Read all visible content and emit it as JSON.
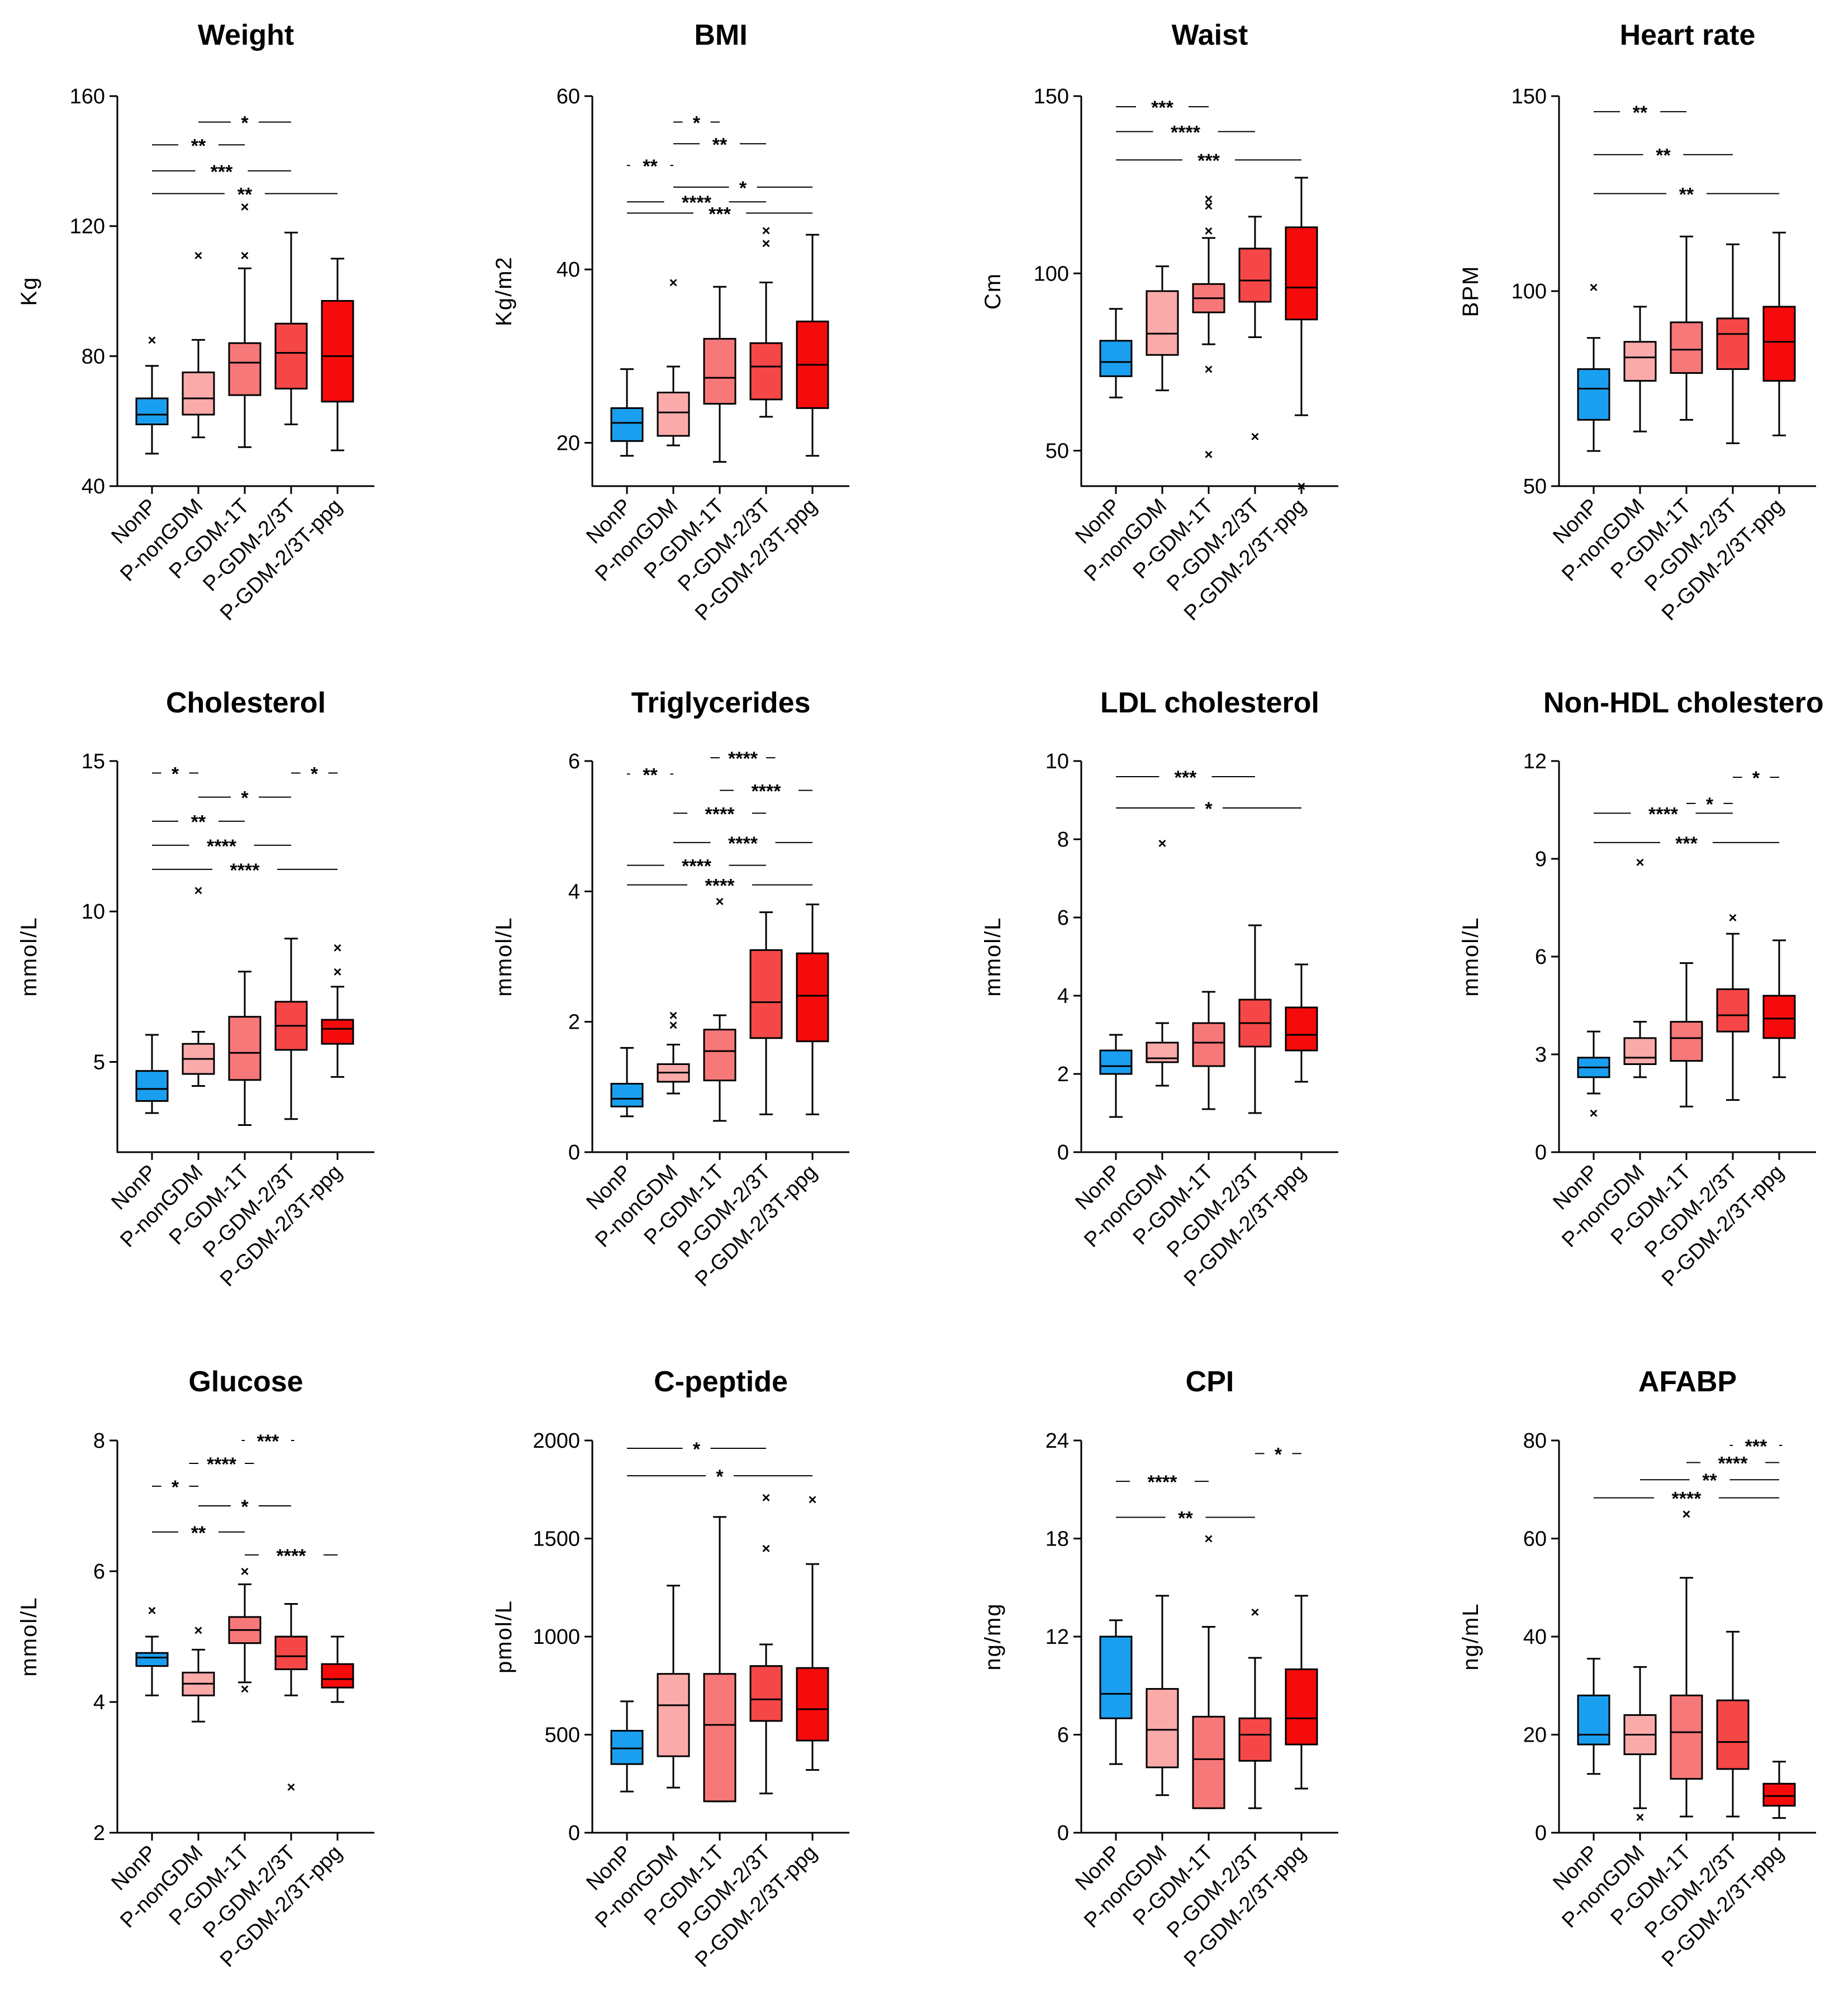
{
  "colors": [
    "#1a9ff0",
    "#fbaaaa",
    "#f77878",
    "#f54747",
    "#f50b0b"
  ],
  "categories": [
    "NonP",
    "P-nonGDM",
    "P-GDM-1T",
    "P-GDM-2/3T",
    "P-GDM-2/3T-ppg"
  ],
  "chart_data": [
    {
      "type": "box",
      "title": "Weight",
      "ylabel": "Kg",
      "ylim": [
        40,
        160
      ],
      "yticks": [
        "40",
        "80",
        "120",
        "160"
      ],
      "boxes": [
        {
          "min": 50,
          "q1": 59,
          "med": 62,
          "q3": 67,
          "max": 77,
          "outliers": [
            85
          ]
        },
        {
          "min": 55,
          "q1": 62,
          "med": 67,
          "q3": 75,
          "max": 85,
          "outliers": [
            111
          ]
        },
        {
          "min": 52,
          "q1": 68,
          "med": 78,
          "q3": 84,
          "max": 107,
          "outliers": [
            111,
            126
          ]
        },
        {
          "min": 59,
          "q1": 70,
          "med": 81,
          "q3": 90,
          "max": 118,
          "outliers": []
        },
        {
          "min": 51,
          "q1": 66,
          "med": 80,
          "q3": 97,
          "max": 110,
          "outliers": []
        }
      ],
      "sigs": [
        {
          "from": 2,
          "to": 4,
          "label": "*",
          "y": 152
        },
        {
          "from": 1,
          "to": 3,
          "label": "**",
          "y": 145
        },
        {
          "from": 1,
          "to": 4,
          "label": "***",
          "y": 137
        },
        {
          "from": 1,
          "to": 5,
          "label": "**",
          "y": 130
        }
      ]
    },
    {
      "type": "box",
      "title": "BMI",
      "ylabel": "Kg/m2",
      "ylim": [
        15,
        60
      ],
      "yticks": [
        "20",
        "40",
        "60"
      ],
      "boxes": [
        {
          "min": 18.5,
          "q1": 20.2,
          "med": 22.3,
          "q3": 24,
          "max": 28.5,
          "outliers": []
        },
        {
          "min": 19.7,
          "q1": 20.8,
          "med": 23.5,
          "q3": 25.8,
          "max": 28.8,
          "outliers": [
            38.5
          ]
        },
        {
          "min": 17.8,
          "q1": 24.5,
          "med": 27.5,
          "q3": 32,
          "max": 38,
          "outliers": []
        },
        {
          "min": 23,
          "q1": 25,
          "med": 28.8,
          "q3": 31.5,
          "max": 38.5,
          "outliers": [
            43,
            44.5
          ]
        },
        {
          "min": 18.5,
          "q1": 24,
          "med": 29,
          "q3": 34,
          "max": 44,
          "outliers": []
        }
      ],
      "sigs": [
        {
          "from": 2,
          "to": 3,
          "label": "*",
          "y": 57
        },
        {
          "from": 2,
          "to": 4,
          "label": "**",
          "y": 54.5
        },
        {
          "from": 1,
          "to": 2,
          "label": "**",
          "y": 52
        },
        {
          "from": 2,
          "to": 5,
          "label": "*",
          "y": 49.5
        },
        {
          "from": 1,
          "to": 4,
          "label": "****",
          "y": 47.8
        },
        {
          "from": 1,
          "to": 5,
          "label": "***",
          "y": 46.5
        }
      ]
    },
    {
      "type": "box",
      "title": "Waist",
      "ylabel": "Cm",
      "ylim": [
        40,
        150
      ],
      "yticks": [
        "50",
        "100",
        "150"
      ],
      "boxes": [
        {
          "min": 65,
          "q1": 71,
          "med": 75,
          "q3": 81,
          "max": 90,
          "outliers": []
        },
        {
          "min": 67,
          "q1": 77,
          "med": 83,
          "q3": 95,
          "max": 102,
          "outliers": []
        },
        {
          "min": 80,
          "q1": 89,
          "med": 93,
          "q3": 97,
          "max": 110,
          "outliers": [
            49,
            73,
            112,
            119,
            121
          ]
        },
        {
          "min": 82,
          "q1": 92,
          "med": 98,
          "q3": 107,
          "max": 116,
          "outliers": [
            54
          ]
        },
        {
          "min": 60,
          "q1": 87,
          "med": 96,
          "q3": 113,
          "max": 127,
          "outliers": [
            40
          ]
        }
      ],
      "sigs": [
        {
          "from": 1,
          "to": 3,
          "label": "***",
          "y": 147
        },
        {
          "from": 1,
          "to": 4,
          "label": "****",
          "y": 140
        },
        {
          "from": 1,
          "to": 5,
          "label": "***",
          "y": 132
        }
      ]
    },
    {
      "type": "box",
      "title": "Heart rate",
      "ylabel": "BPM",
      "ylim": [
        50,
        150
      ],
      "yticks": [
        "50",
        "100",
        "150"
      ],
      "boxes": [
        {
          "min": 59,
          "q1": 67,
          "med": 75,
          "q3": 80,
          "max": 88,
          "outliers": [
            101
          ]
        },
        {
          "min": 64,
          "q1": 77,
          "med": 83,
          "q3": 87,
          "max": 96,
          "outliers": []
        },
        {
          "min": 67,
          "q1": 79,
          "med": 85,
          "q3": 92,
          "max": 114,
          "outliers": []
        },
        {
          "min": 61,
          "q1": 80,
          "med": 89,
          "q3": 93,
          "max": 112,
          "outliers": []
        },
        {
          "min": 63,
          "q1": 77,
          "med": 87,
          "q3": 96,
          "max": 115,
          "outliers": []
        }
      ],
      "sigs": [
        {
          "from": 1,
          "to": 3,
          "label": "**",
          "y": 146
        },
        {
          "from": 1,
          "to": 4,
          "label": "**",
          "y": 135
        },
        {
          "from": 1,
          "to": 5,
          "label": "**",
          "y": 125
        }
      ]
    },
    {
      "type": "box",
      "title": "Cholesterol",
      "ylabel": "mmol/L",
      "ylim": [
        2,
        15
      ],
      "yticks": [
        "5",
        "10",
        "15"
      ],
      "boxes": [
        {
          "min": 3.3,
          "q1": 3.7,
          "med": 4.1,
          "q3": 4.7,
          "max": 5.9,
          "outliers": []
        },
        {
          "min": 4.2,
          "q1": 4.6,
          "med": 5.1,
          "q3": 5.6,
          "max": 6,
          "outliers": [
            10.7
          ]
        },
        {
          "min": 2.9,
          "q1": 4.4,
          "med": 5.3,
          "q3": 6.5,
          "max": 8,
          "outliers": []
        },
        {
          "min": 3.1,
          "q1": 5.4,
          "med": 6.2,
          "q3": 7,
          "max": 9.1,
          "outliers": []
        },
        {
          "min": 4.5,
          "q1": 5.6,
          "med": 6.1,
          "q3": 6.4,
          "max": 7.5,
          "outliers": [
            8,
            8.8
          ]
        }
      ],
      "sigs": [
        {
          "from": 1,
          "to": 2,
          "label": "*",
          "y": 14.6
        },
        {
          "from": 4,
          "to": 5,
          "label": "*",
          "y": 14.6
        },
        {
          "from": 2,
          "to": 4,
          "label": "*",
          "y": 13.8
        },
        {
          "from": 1,
          "to": 3,
          "label": "**",
          "y": 13
        },
        {
          "from": 1,
          "to": 4,
          "label": "****",
          "y": 12.2
        },
        {
          "from": 1,
          "to": 5,
          "label": "****",
          "y": 11.4
        }
      ]
    },
    {
      "type": "box",
      "title": "Triglycerides",
      "ylabel": "mmol/L",
      "ylim": [
        0,
        6
      ],
      "yticks": [
        "0",
        "2",
        "4",
        "6"
      ],
      "boxes": [
        {
          "min": 0.55,
          "q1": 0.7,
          "med": 0.82,
          "q3": 1.05,
          "max": 1.6,
          "outliers": []
        },
        {
          "min": 0.9,
          "q1": 1.08,
          "med": 1.22,
          "q3": 1.35,
          "max": 1.65,
          "outliers": [
            1.95,
            2.1
          ]
        },
        {
          "min": 0.48,
          "q1": 1.1,
          "med": 1.55,
          "q3": 1.88,
          "max": 2.1,
          "outliers": [
            3.85
          ]
        },
        {
          "min": 0.58,
          "q1": 1.75,
          "med": 2.3,
          "q3": 3.1,
          "max": 3.68,
          "outliers": []
        },
        {
          "min": 0.58,
          "q1": 1.7,
          "med": 2.4,
          "q3": 3.05,
          "max": 3.8,
          "outliers": []
        }
      ],
      "sigs": [
        {
          "from": 3,
          "to": 4,
          "label": "****",
          "y": 6.05
        },
        {
          "from": 1,
          "to": 2,
          "label": "**",
          "y": 5.8
        },
        {
          "from": 3,
          "to": 5,
          "label": "****",
          "y": 5.55
        },
        {
          "from": 2,
          "to": 4,
          "label": "****",
          "y": 5.2
        },
        {
          "from": 2,
          "to": 5,
          "label": "****",
          "y": 4.75
        },
        {
          "from": 1,
          "to": 4,
          "label": "****",
          "y": 4.4
        },
        {
          "from": 1,
          "to": 5,
          "label": "****",
          "y": 4.1
        }
      ]
    },
    {
      "type": "box",
      "title": "LDL cholesterol",
      "ylabel": "mmol/L",
      "ylim": [
        0,
        10
      ],
      "yticks": [
        "0",
        "2",
        "4",
        "6",
        "8",
        "10"
      ],
      "boxes": [
        {
          "min": 0.9,
          "q1": 2,
          "med": 2.2,
          "q3": 2.6,
          "max": 3,
          "outliers": []
        },
        {
          "min": 1.7,
          "q1": 2.3,
          "med": 2.4,
          "q3": 2.8,
          "max": 3.3,
          "outliers": [
            7.9
          ]
        },
        {
          "min": 1.1,
          "q1": 2.2,
          "med": 2.8,
          "q3": 3.3,
          "max": 4.1,
          "outliers": []
        },
        {
          "min": 1,
          "q1": 2.7,
          "med": 3.3,
          "q3": 3.9,
          "max": 5.8,
          "outliers": []
        },
        {
          "min": 1.8,
          "q1": 2.6,
          "med": 3,
          "q3": 3.7,
          "max": 4.8,
          "outliers": []
        }
      ],
      "sigs": [
        {
          "from": 1,
          "to": 4,
          "label": "***",
          "y": 9.6
        },
        {
          "from": 1,
          "to": 5,
          "label": "*",
          "y": 8.8
        }
      ]
    },
    {
      "type": "box",
      "title": "Non-HDL cholesterol",
      "ylabel": "mmol/L",
      "ylim": [
        0,
        12
      ],
      "yticks": [
        "0",
        "3",
        "6",
        "9",
        "12"
      ],
      "boxes": [
        {
          "min": 1.8,
          "q1": 2.3,
          "med": 2.6,
          "q3": 2.9,
          "max": 3.7,
          "outliers": [
            1.2
          ]
        },
        {
          "min": 2.3,
          "q1": 2.7,
          "med": 2.9,
          "q3": 3.5,
          "max": 4,
          "outliers": [
            8.9
          ]
        },
        {
          "min": 1.4,
          "q1": 2.8,
          "med": 3.5,
          "q3": 4,
          "max": 5.8,
          "outliers": []
        },
        {
          "min": 1.6,
          "q1": 3.7,
          "med": 4.2,
          "q3": 5,
          "max": 6.7,
          "outliers": [
            7.2
          ]
        },
        {
          "min": 2.3,
          "q1": 3.5,
          "med": 4.1,
          "q3": 4.8,
          "max": 6.5,
          "outliers": []
        }
      ],
      "sigs": [
        {
          "from": 4,
          "to": 5,
          "label": "*",
          "y": 11.5
        },
        {
          "from": 3,
          "to": 4,
          "label": "*",
          "y": 10.7
        },
        {
          "from": 1,
          "to": 4,
          "label": "****",
          "y": 10.4
        },
        {
          "from": 1,
          "to": 5,
          "label": "***",
          "y": 9.5
        }
      ]
    },
    {
      "type": "box",
      "title": "Glucose",
      "ylabel": "mmol/L",
      "ylim": [
        2,
        8
      ],
      "yticks": [
        "2",
        "4",
        "6",
        "8"
      ],
      "boxes": [
        {
          "min": 4.1,
          "q1": 4.55,
          "med": 4.68,
          "q3": 4.75,
          "max": 5,
          "outliers": [
            5.4
          ]
        },
        {
          "min": 3.7,
          "q1": 4.1,
          "med": 4.28,
          "q3": 4.45,
          "max": 4.8,
          "outliers": [
            5.1
          ]
        },
        {
          "min": 4.3,
          "q1": 4.9,
          "med": 5.1,
          "q3": 5.3,
          "max": 5.8,
          "outliers": [
            4.2,
            6
          ]
        },
        {
          "min": 4.1,
          "q1": 4.5,
          "med": 4.7,
          "q3": 5,
          "max": 5.5,
          "outliers": [
            2.7
          ]
        },
        {
          "min": 4,
          "q1": 4.22,
          "med": 4.35,
          "q3": 4.58,
          "max": 5,
          "outliers": []
        }
      ],
      "sigs": [
        {
          "from": 3,
          "to": 4,
          "label": "***",
          "y": 8
        },
        {
          "from": 2,
          "to": 3,
          "label": "****",
          "y": 7.65
        },
        {
          "from": 1,
          "to": 2,
          "label": "*",
          "y": 7.3
        },
        {
          "from": 2,
          "to": 4,
          "label": "*",
          "y": 7
        },
        {
          "from": 1,
          "to": 3,
          "label": "**",
          "y": 6.6
        },
        {
          "from": 3,
          "to": 5,
          "label": "****",
          "y": 6.25
        }
      ]
    },
    {
      "type": "box",
      "title": "C-peptide",
      "ylabel": "pmol/L",
      "ylim": [
        0,
        2000
      ],
      "yticks": [
        "0",
        "500",
        "1000",
        "1500",
        "2000"
      ],
      "boxes": [
        {
          "min": 210,
          "q1": 350,
          "med": 430,
          "q3": 520,
          "max": 670,
          "outliers": []
        },
        {
          "min": 230,
          "q1": 390,
          "med": 650,
          "q3": 810,
          "max": 1260,
          "outliers": []
        },
        {
          "min": 160,
          "q1": 160,
          "med": 550,
          "q3": 810,
          "max": 1610,
          "outliers": []
        },
        {
          "min": 200,
          "q1": 570,
          "med": 680,
          "q3": 850,
          "max": 960,
          "outliers": [
            1450,
            1710
          ]
        },
        {
          "min": 320,
          "q1": 470,
          "med": 630,
          "q3": 840,
          "max": 1370,
          "outliers": [
            1700
          ]
        }
      ],
      "sigs": [
        {
          "from": 1,
          "to": 4,
          "label": "*",
          "y": 1960
        },
        {
          "from": 1,
          "to": 5,
          "label": "*",
          "y": 1820
        }
      ]
    },
    {
      "type": "box",
      "title": "CPI",
      "ylabel": "ng/mg",
      "ylim": [
        0,
        24
      ],
      "yticks": [
        "0",
        "6",
        "12",
        "18",
        "24"
      ],
      "boxes": [
        {
          "min": 4.2,
          "q1": 7,
          "med": 8.5,
          "q3": 12,
          "max": 13,
          "outliers": []
        },
        {
          "min": 2.3,
          "q1": 4,
          "med": 6.3,
          "q3": 8.8,
          "max": 14.5,
          "outliers": []
        },
        {
          "min": 1.5,
          "q1": 1.5,
          "med": 4.5,
          "q3": 7.1,
          "max": 12.6,
          "outliers": [
            18
          ]
        },
        {
          "min": 1.5,
          "q1": 4.4,
          "med": 6,
          "q3": 7,
          "max": 10.7,
          "outliers": [
            13.5
          ]
        },
        {
          "min": 2.7,
          "q1": 5.4,
          "med": 7,
          "q3": 10,
          "max": 14.5,
          "outliers": []
        }
      ],
      "sigs": [
        {
          "from": 4,
          "to": 5,
          "label": "*",
          "y": 23.2
        },
        {
          "from": 1,
          "to": 3,
          "label": "****",
          "y": 21.5
        },
        {
          "from": 1,
          "to": 4,
          "label": "**",
          "y": 19.3
        }
      ]
    },
    {
      "type": "box",
      "title": "AFABP",
      "ylabel": "ng/mL",
      "ylim": [
        0,
        80
      ],
      "yticks": [
        "0",
        "20",
        "40",
        "60",
        "80"
      ],
      "boxes": [
        {
          "min": 12,
          "q1": 18,
          "med": 20,
          "q3": 28,
          "max": 35.5,
          "outliers": []
        },
        {
          "min": 5,
          "q1": 16,
          "med": 20,
          "q3": 24,
          "max": 33.8,
          "outliers": [
            3.2
          ]
        },
        {
          "min": 3.3,
          "q1": 11,
          "med": 20.5,
          "q3": 28,
          "max": 52,
          "outliers": [
            65
          ]
        },
        {
          "min": 3.3,
          "q1": 13,
          "med": 18.5,
          "q3": 27,
          "max": 41,
          "outliers": []
        },
        {
          "min": 3,
          "q1": 5.5,
          "med": 7.5,
          "q3": 10,
          "max": 14.5,
          "outliers": []
        }
      ],
      "sigs": [
        {
          "from": 4,
          "to": 5,
          "label": "***",
          "y": 79
        },
        {
          "from": 3,
          "to": 5,
          "label": "****",
          "y": 75.5
        },
        {
          "from": 2,
          "to": 5,
          "label": "**",
          "y": 72
        },
        {
          "from": 1,
          "to": 5,
          "label": "****",
          "y": 68.3
        }
      ]
    }
  ]
}
